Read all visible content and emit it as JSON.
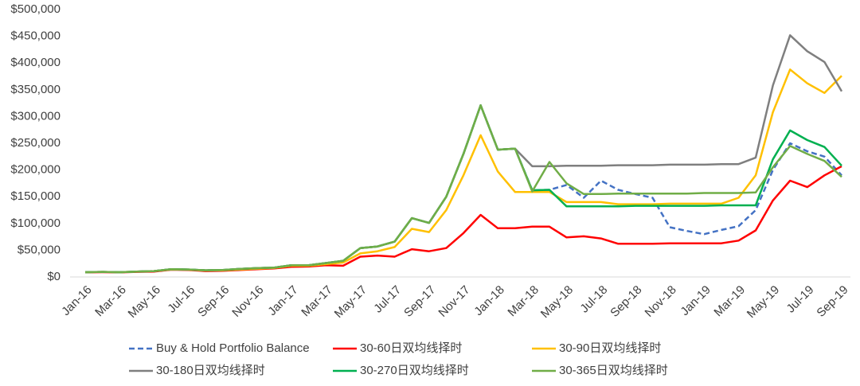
{
  "chart_data": {
    "type": "line",
    "categories": [
      "Jan-16",
      null,
      "Mar-16",
      null,
      "May-16",
      null,
      "Jul-16",
      null,
      "Sep-16",
      null,
      "Nov-16",
      null,
      "Jan-17",
      null,
      "Mar-17",
      null,
      "May-17",
      null,
      "Jul-17",
      null,
      "Sep-17",
      null,
      "Nov-17",
      null,
      "Jan-18",
      null,
      "Mar-18",
      null,
      "May-18",
      null,
      "Jul-18",
      null,
      "Sep-18",
      null,
      "Nov-18",
      null,
      "Jan-19",
      null,
      "Mar-19",
      null,
      "May-19",
      null,
      "Jul-19",
      null,
      "Sep-19"
    ],
    "ylim": [
      0,
      500000
    ],
    "yticks": [
      {
        "value": 0,
        "label": "$0"
      },
      {
        "value": 50000,
        "label": "$50,000"
      },
      {
        "value": 100000,
        "label": "$100,000"
      },
      {
        "value": 150000,
        "label": "$150,000"
      },
      {
        "value": 200000,
        "label": "$200,000"
      },
      {
        "value": 250000,
        "label": "$250,000"
      },
      {
        "value": 300000,
        "label": "$300,000"
      },
      {
        "value": 350000,
        "label": "$350,000"
      },
      {
        "value": 400000,
        "label": "$400,000"
      },
      {
        "value": 450000,
        "label": "$450,000"
      },
      {
        "value": 500000,
        "label": "$500,000"
      }
    ],
    "grid": false,
    "legend": "bottom",
    "series": [
      {
        "name": "Buy & Hold Portfolio Balance",
        "color": "#4472c4",
        "style": "dashed",
        "values": [
          9000,
          9500,
          9000,
          10000,
          11000,
          14500,
          14000,
          12500,
          13000,
          15000,
          16500,
          17500,
          22000,
          22000,
          26000,
          30000,
          54000,
          57000,
          66000,
          110000,
          101000,
          150000,
          230000,
          321000,
          238000,
          240000,
          162000,
          163000,
          172000,
          148000,
          180000,
          163000,
          155000,
          148000,
          93000,
          86000,
          80000,
          88000,
          95000,
          125000,
          200000,
          250000,
          235000,
          225000,
          190000
        ]
      },
      {
        "name": "30-60日双均线择时",
        "color": "#ff0000",
        "values": [
          8500,
          9000,
          8500,
          9500,
          10000,
          13500,
          13000,
          11000,
          11500,
          13000,
          14500,
          16000,
          19000,
          19500,
          22000,
          21000,
          38000,
          40000,
          38000,
          52000,
          48000,
          54000,
          82000,
          116000,
          91000,
          91000,
          94000,
          94000,
          74000,
          76000,
          72000,
          62000,
          62000,
          62000,
          63000,
          63000,
          63000,
          63000,
          68000,
          87000,
          143000,
          180000,
          168000,
          190000,
          207000
        ]
      },
      {
        "name": "30-90日双均线择时",
        "color": "#ffc000",
        "values": [
          9000,
          9500,
          9000,
          10000,
          11000,
          14000,
          13500,
          12000,
          12500,
          14000,
          15500,
          17000,
          21000,
          21000,
          24000,
          27000,
          44000,
          48000,
          56000,
          90000,
          84000,
          125000,
          190000,
          265000,
          197000,
          159000,
          159000,
          159000,
          140000,
          140000,
          140000,
          136000,
          136000,
          136000,
          137000,
          137000,
          137000,
          137000,
          148000,
          190000,
          308000,
          388000,
          362000,
          344000,
          376000
        ]
      },
      {
        "name": "30-180日双均线择时",
        "color": "#7f7f7f",
        "values": [
          9000,
          9500,
          9000,
          10000,
          11000,
          14500,
          14000,
          12500,
          13000,
          15000,
          16500,
          17500,
          22000,
          22000,
          26000,
          30000,
          54000,
          57000,
          66000,
          110000,
          101000,
          150000,
          230000,
          321000,
          238000,
          240000,
          207000,
          207000,
          208000,
          208000,
          208000,
          209000,
          209000,
          209000,
          210000,
          210000,
          210000,
          211000,
          211000,
          223000,
          358000,
          452000,
          422000,
          402000,
          347000
        ]
      },
      {
        "name": "30-270日双均线择时",
        "color": "#00b050",
        "values": [
          9000,
          9500,
          9000,
          10000,
          11000,
          14500,
          14000,
          12500,
          13000,
          15000,
          16500,
          17500,
          22000,
          22000,
          26000,
          30000,
          54000,
          57000,
          66000,
          110000,
          101000,
          150000,
          230000,
          321000,
          238000,
          240000,
          162000,
          163000,
          132000,
          132000,
          132000,
          132000,
          133000,
          133000,
          133000,
          133000,
          133000,
          134000,
          134000,
          134000,
          220000,
          274000,
          256000,
          243000,
          208000
        ]
      },
      {
        "name": "30-365日双均线择时",
        "color": "#70ad47",
        "values": [
          9000,
          9500,
          9000,
          10000,
          11000,
          14500,
          14000,
          12500,
          13000,
          15000,
          16500,
          17500,
          22000,
          22000,
          26000,
          30000,
          54000,
          57000,
          66000,
          110000,
          101000,
          150000,
          230000,
          321000,
          238000,
          240000,
          160000,
          215000,
          175000,
          155000,
          155000,
          156000,
          156000,
          156000,
          156000,
          156000,
          157000,
          157000,
          157000,
          158000,
          205000,
          245000,
          230000,
          217000,
          187000
        ]
      }
    ]
  }
}
